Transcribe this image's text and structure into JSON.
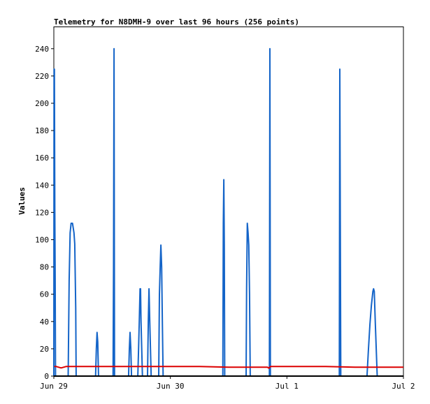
{
  "chart_data": {
    "type": "line",
    "title": "Telemetry for N8DMH-9 over last 96 hours (256 points)",
    "xlabel": "",
    "ylabel": "Values",
    "ylim": [
      0,
      256
    ],
    "yticks": [
      0,
      20,
      40,
      60,
      80,
      100,
      120,
      140,
      160,
      180,
      200,
      220,
      240
    ],
    "xlim": [
      0,
      72
    ],
    "xticks": [
      {
        "value": 0,
        "label": "Jun 29"
      },
      {
        "value": 24,
        "label": "Jun 30"
      },
      {
        "value": 48,
        "label": "Jul 1"
      },
      {
        "value": 72,
        "label": "Jul 2"
      }
    ],
    "grid": false,
    "series": [
      {
        "color": "#1464c8",
        "points": [
          [
            0.0,
            0
          ],
          [
            0.05,
            225
          ],
          [
            0.12,
            225
          ],
          [
            0.2,
            120
          ],
          [
            0.28,
            72
          ],
          [
            0.35,
            0
          ],
          [
            2.95,
            0
          ],
          [
            3.15,
            70
          ],
          [
            3.35,
            105
          ],
          [
            3.55,
            112
          ],
          [
            3.85,
            112
          ],
          [
            4.15,
            105
          ],
          [
            4.3,
            97
          ],
          [
            4.5,
            50
          ],
          [
            4.6,
            0
          ],
          [
            8.6,
            0
          ],
          [
            8.75,
            20
          ],
          [
            8.9,
            32
          ],
          [
            9.05,
            25
          ],
          [
            9.2,
            0
          ],
          [
            12.2,
            0
          ],
          [
            12.3,
            80
          ],
          [
            12.4,
            240
          ],
          [
            12.5,
            0
          ],
          [
            15.4,
            0
          ],
          [
            15.55,
            20
          ],
          [
            15.7,
            32
          ],
          [
            15.85,
            20
          ],
          [
            16.0,
            0
          ],
          [
            17.3,
            0
          ],
          [
            17.45,
            20
          ],
          [
            17.6,
            40
          ],
          [
            17.75,
            64
          ],
          [
            17.85,
            64
          ],
          [
            17.95,
            40
          ],
          [
            18.1,
            20
          ],
          [
            18.25,
            0
          ],
          [
            19.3,
            0
          ],
          [
            19.45,
            40
          ],
          [
            19.6,
            64
          ],
          [
            19.75,
            40
          ],
          [
            19.9,
            20
          ],
          [
            20.05,
            0
          ],
          [
            21.6,
            0
          ],
          [
            21.75,
            60
          ],
          [
            21.9,
            80
          ],
          [
            22.05,
            96
          ],
          [
            22.2,
            80
          ],
          [
            22.35,
            40
          ],
          [
            22.5,
            0
          ],
          [
            34.8,
            0
          ],
          [
            34.9,
            112
          ],
          [
            35.0,
            144
          ],
          [
            35.1,
            96
          ],
          [
            35.2,
            0
          ],
          [
            39.6,
            0
          ],
          [
            39.7,
            64
          ],
          [
            39.85,
            112
          ],
          [
            40.0,
            105
          ],
          [
            40.15,
            96
          ],
          [
            40.3,
            60
          ],
          [
            40.45,
            0
          ],
          [
            44.4,
            0
          ],
          [
            44.5,
            240
          ],
          [
            44.6,
            0
          ],
          [
            58.8,
            0
          ],
          [
            58.9,
            225
          ],
          [
            59.0,
            112
          ],
          [
            59.1,
            0
          ],
          [
            64.5,
            0
          ],
          [
            64.8,
            20
          ],
          [
            65.1,
            38
          ],
          [
            65.4,
            52
          ],
          [
            65.7,
            62
          ],
          [
            65.85,
            64
          ],
          [
            66.0,
            62
          ],
          [
            66.2,
            40
          ],
          [
            66.4,
            20
          ],
          [
            66.6,
            0
          ],
          [
            72.0,
            0
          ]
        ]
      },
      {
        "color": "#dc0000",
        "points": [
          [
            0.1,
            7
          ],
          [
            0.5,
            7
          ],
          [
            1.0,
            6.5
          ],
          [
            1.5,
            6
          ],
          [
            2.0,
            6.5
          ],
          [
            2.5,
            7
          ],
          [
            8.0,
            7
          ],
          [
            16.0,
            7
          ],
          [
            24.0,
            7
          ],
          [
            30.0,
            7
          ],
          [
            36.0,
            6.5
          ],
          [
            42.0,
            6.5
          ],
          [
            44.0,
            6.5
          ],
          [
            44.3,
            5.8
          ],
          [
            44.6,
            7
          ],
          [
            48.0,
            7
          ],
          [
            56.0,
            7
          ],
          [
            62.0,
            6.5
          ],
          [
            68.0,
            6.5
          ],
          [
            72.0,
            6.5
          ]
        ]
      }
    ]
  }
}
